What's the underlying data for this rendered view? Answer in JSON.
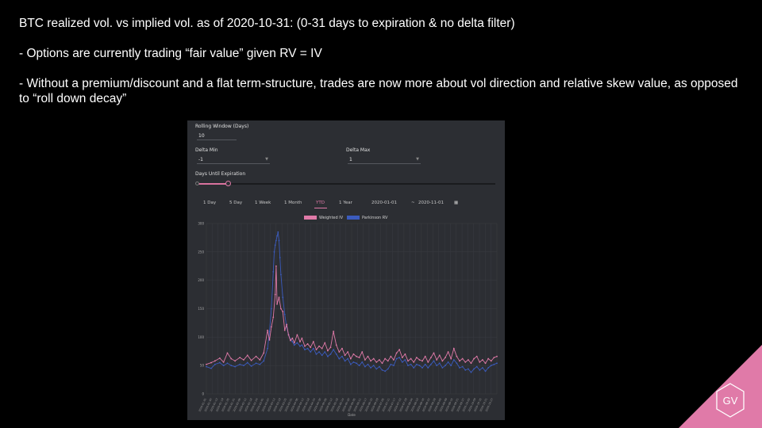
{
  "slide": {
    "title": "BTC realized vol. vs implied vol. as of 2020-10-31: (0-31 days to expiration & no delta filter)",
    "bullet1": "- Options are currently trading “fair value” given RV = IV",
    "bullet2": "- Without a premium/discount and a flat term-structure, trades are now more about vol direction and relative skew value, as opposed to “roll down decay”",
    "logo_text": "GV",
    "logo_color": "#e07aa8"
  },
  "controls": {
    "rolling_window_label": "Rolling Window (Days)",
    "rolling_window_value": "10",
    "delta_min_label": "Delta Min",
    "delta_min_value": "-1",
    "delta_max_label": "Delta Max",
    "delta_max_value": "1",
    "days_until_expiration_label": "Days Until Expiration",
    "ranges": [
      "1 Day",
      "5 Day",
      "1 Week",
      "1 Month",
      "YTD",
      "1 Year"
    ],
    "active_range": "YTD",
    "start_date": "2020-01-01",
    "end_date": "2020-11-01",
    "date_separator": "~"
  },
  "chart_data": {
    "type": "line",
    "title": "",
    "xlabel": "Date",
    "ylabel": "",
    "ylim": [
      0,
      300
    ],
    "yticks": [
      0,
      50,
      100,
      150,
      200,
      250,
      300
    ],
    "x_range": [
      "2020-01-01",
      "2020-10-31"
    ],
    "legend_position": "top-center",
    "grid": true,
    "series": [
      {
        "name": "Weighted IV",
        "color": "#e07aa8",
        "values": [
          [
            0,
            52
          ],
          [
            5,
            55
          ],
          [
            9,
            58
          ],
          [
            14,
            63
          ],
          [
            18,
            56
          ],
          [
            22,
            72
          ],
          [
            26,
            62
          ],
          [
            30,
            58
          ],
          [
            35,
            64
          ],
          [
            39,
            60
          ],
          [
            43,
            68
          ],
          [
            47,
            59
          ],
          [
            52,
            66
          ],
          [
            56,
            60
          ],
          [
            60,
            72
          ],
          [
            64,
            112
          ],
          [
            66,
            95
          ],
          [
            68,
            118
          ],
          [
            70,
            135
          ],
          [
            72,
            175
          ],
          [
            73,
            225
          ],
          [
            74,
            158
          ],
          [
            76,
            170
          ],
          [
            78,
            150
          ],
          [
            80,
            145
          ],
          [
            82,
            112
          ],
          [
            84,
            122
          ],
          [
            86,
            104
          ],
          [
            88,
            94
          ],
          [
            90,
            98
          ],
          [
            92,
            90
          ],
          [
            95,
            104
          ],
          [
            98,
            92
          ],
          [
            100,
            98
          ],
          [
            103,
            84
          ],
          [
            106,
            88
          ],
          [
            109,
            82
          ],
          [
            112,
            92
          ],
          [
            115,
            78
          ],
          [
            118,
            84
          ],
          [
            121,
            80
          ],
          [
            124,
            90
          ],
          [
            127,
            76
          ],
          [
            130,
            82
          ],
          [
            133,
            110
          ],
          [
            136,
            86
          ],
          [
            139,
            74
          ],
          [
            142,
            80
          ],
          [
            145,
            68
          ],
          [
            148,
            74
          ],
          [
            151,
            62
          ],
          [
            154,
            70
          ],
          [
            157,
            66
          ],
          [
            160,
            64
          ],
          [
            163,
            74
          ],
          [
            166,
            60
          ],
          [
            169,
            66
          ],
          [
            172,
            58
          ],
          [
            175,
            62
          ],
          [
            178,
            56
          ],
          [
            181,
            60
          ],
          [
            184,
            54
          ],
          [
            187,
            62
          ],
          [
            190,
            58
          ],
          [
            193,
            66
          ],
          [
            196,
            60
          ],
          [
            199,
            72
          ],
          [
            202,
            78
          ],
          [
            205,
            64
          ],
          [
            208,
            70
          ],
          [
            211,
            58
          ],
          [
            214,
            62
          ],
          [
            217,
            56
          ],
          [
            220,
            64
          ],
          [
            223,
            60
          ],
          [
            226,
            58
          ],
          [
            229,
            66
          ],
          [
            232,
            56
          ],
          [
            235,
            64
          ],
          [
            238,
            72
          ],
          [
            241,
            60
          ],
          [
            244,
            68
          ],
          [
            247,
            58
          ],
          [
            250,
            64
          ],
          [
            253,
            74
          ],
          [
            256,
            62
          ],
          [
            259,
            80
          ],
          [
            262,
            66
          ],
          [
            265,
            58
          ],
          [
            268,
            62
          ],
          [
            271,
            56
          ],
          [
            274,
            60
          ],
          [
            277,
            54
          ],
          [
            280,
            62
          ],
          [
            283,
            66
          ],
          [
            286,
            56
          ],
          [
            289,
            60
          ],
          [
            292,
            54
          ],
          [
            295,
            62
          ],
          [
            298,
            58
          ],
          [
            301,
            64
          ],
          [
            304,
            66
          ]
        ]
      },
      {
        "name": "Parkinson RV",
        "color": "#3b5bbd",
        "values": [
          [
            0,
            48
          ],
          [
            5,
            45
          ],
          [
            9,
            52
          ],
          [
            14,
            55
          ],
          [
            18,
            50
          ],
          [
            22,
            54
          ],
          [
            26,
            50
          ],
          [
            30,
            48
          ],
          [
            35,
            52
          ],
          [
            39,
            50
          ],
          [
            43,
            55
          ],
          [
            47,
            49
          ],
          [
            52,
            54
          ],
          [
            56,
            52
          ],
          [
            60,
            58
          ],
          [
            64,
            80
          ],
          [
            66,
            110
          ],
          [
            68,
            150
          ],
          [
            70,
            215
          ],
          [
            71,
            250
          ],
          [
            72,
            262
          ],
          [
            73,
            270
          ],
          [
            74,
            278
          ],
          [
            75,
            285
          ],
          [
            76,
            270
          ],
          [
            77,
            240
          ],
          [
            78,
            210
          ],
          [
            80,
            170
          ],
          [
            82,
            140
          ],
          [
            84,
            118
          ],
          [
            86,
            104
          ],
          [
            88,
            96
          ],
          [
            90,
            92
          ],
          [
            92,
            86
          ],
          [
            95,
            90
          ],
          [
            98,
            84
          ],
          [
            100,
            86
          ],
          [
            103,
            78
          ],
          [
            106,
            80
          ],
          [
            109,
            74
          ],
          [
            112,
            80
          ],
          [
            115,
            70
          ],
          [
            118,
            74
          ],
          [
            121,
            68
          ],
          [
            124,
            74
          ],
          [
            127,
            66
          ],
          [
            130,
            70
          ],
          [
            133,
            78
          ],
          [
            136,
            70
          ],
          [
            139,
            62
          ],
          [
            142,
            66
          ],
          [
            145,
            58
          ],
          [
            148,
            62
          ],
          [
            151,
            52
          ],
          [
            154,
            56
          ],
          [
            157,
            54
          ],
          [
            160,
            50
          ],
          [
            163,
            56
          ],
          [
            166,
            48
          ],
          [
            169,
            52
          ],
          [
            172,
            46
          ],
          [
            175,
            50
          ],
          [
            178,
            44
          ],
          [
            181,
            48
          ],
          [
            184,
            42
          ],
          [
            187,
            40
          ],
          [
            190,
            44
          ],
          [
            193,
            52
          ],
          [
            196,
            50
          ],
          [
            199,
            62
          ],
          [
            202,
            64
          ],
          [
            205,
            56
          ],
          [
            208,
            60
          ],
          [
            211,
            50
          ],
          [
            214,
            52
          ],
          [
            217,
            46
          ],
          [
            220,
            52
          ],
          [
            223,
            50
          ],
          [
            226,
            46
          ],
          [
            229,
            52
          ],
          [
            232,
            46
          ],
          [
            235,
            52
          ],
          [
            238,
            58
          ],
          [
            241,
            50
          ],
          [
            244,
            54
          ],
          [
            247,
            46
          ],
          [
            250,
            50
          ],
          [
            253,
            56
          ],
          [
            256,
            50
          ],
          [
            259,
            60
          ],
          [
            262,
            54
          ],
          [
            265,
            46
          ],
          [
            268,
            48
          ],
          [
            271,
            42
          ],
          [
            274,
            44
          ],
          [
            277,
            38
          ],
          [
            280,
            44
          ],
          [
            283,
            48
          ],
          [
            286,
            42
          ],
          [
            289,
            46
          ],
          [
            292,
            40
          ],
          [
            295,
            46
          ],
          [
            298,
            50
          ],
          [
            301,
            52
          ],
          [
            304,
            54
          ]
        ]
      }
    ]
  }
}
